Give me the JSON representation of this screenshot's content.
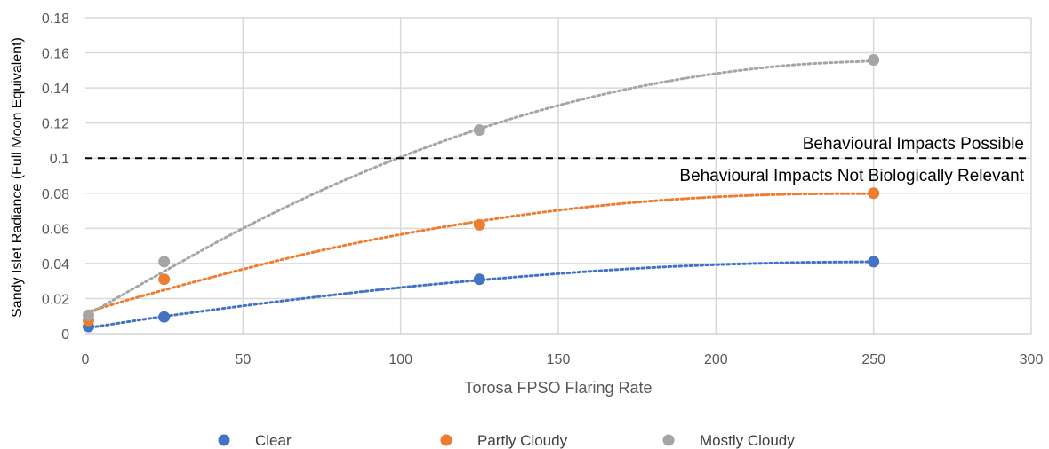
{
  "chart_data": {
    "type": "scatter",
    "xlabel": "Torosa FPSO Flaring Rate",
    "ylabel": "Sandy Islet Radiance (Full Moon Equivalent)",
    "xlim": [
      0,
      300
    ],
    "ylim": [
      0,
      0.18
    ],
    "x_ticks": [
      "0",
      "50",
      "100",
      "150",
      "200",
      "250",
      "300"
    ],
    "y_ticks": [
      "0",
      "0.02",
      "0.04",
      "0.06",
      "0.08",
      "0.1",
      "0.12",
      "0.14",
      "0.16",
      "0.18"
    ],
    "x_tick_values": [
      0,
      50,
      100,
      150,
      200,
      250,
      300
    ],
    "y_tick_values": [
      0,
      0.02,
      0.04,
      0.06,
      0.08,
      0.1,
      0.12,
      0.14,
      0.16,
      0.18
    ],
    "grid": true,
    "legend_position": "bottom",
    "series": [
      {
        "name": "Clear",
        "color": "#4472C4",
        "x": [
          1,
          25,
          125,
          250
        ],
        "y": [
          0.004,
          0.0095,
          0.031,
          0.041
        ],
        "trendline_x": [
          0,
          10,
          25,
          50,
          75,
          100,
          125,
          150,
          175,
          200,
          225,
          250
        ],
        "trendline_y": [
          0.003,
          0.0058,
          0.0098,
          0.0158,
          0.0213,
          0.0263,
          0.0305,
          0.0342,
          0.0372,
          0.0393,
          0.0405,
          0.041
        ]
      },
      {
        "name": "Partly Cloudy",
        "color": "#ED7D31",
        "x": [
          1,
          25,
          125,
          250
        ],
        "y": [
          0.0075,
          0.031,
          0.062,
          0.08
        ],
        "trendline_x": [
          0,
          10,
          25,
          50,
          75,
          100,
          125,
          150,
          175,
          200,
          225,
          250
        ],
        "trendline_y": [
          0.012,
          0.0173,
          0.0249,
          0.0367,
          0.0475,
          0.0565,
          0.0641,
          0.0703,
          0.0749,
          0.0779,
          0.0795,
          0.0798
        ]
      },
      {
        "name": "Mostly Cloudy",
        "color": "#A5A5A5",
        "x": [
          1,
          25,
          125,
          250
        ],
        "y": [
          0.0105,
          0.041,
          0.116,
          0.156
        ],
        "trendline_x": [
          0,
          10,
          25,
          50,
          75,
          100,
          125,
          150,
          175,
          200,
          225,
          250
        ],
        "trendline_y": [
          0.01,
          0.0203,
          0.0355,
          0.06,
          0.0817,
          0.1006,
          0.1167,
          0.13,
          0.1405,
          0.1482,
          0.1532,
          0.1554
        ]
      }
    ],
    "reference_line": {
      "y": 0.1,
      "style": "dashed",
      "color": "#000000",
      "label_above": "Behavioural Impacts Possible",
      "label_below": "Behavioural Impacts Not Biologically Relevant"
    }
  }
}
